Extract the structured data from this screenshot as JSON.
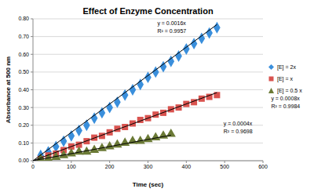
{
  "chart_data": {
    "type": "scatter",
    "title": "Effect of Enzyme Concentration",
    "x_label": "Time (sec)",
    "y_label": "Absorbance at 500 nm",
    "xlim": [
      0,
      600
    ],
    "xticks": [
      0,
      100,
      200,
      300,
      400,
      500,
      600
    ],
    "ylim": [
      0,
      0.8
    ],
    "yticks": [
      {
        "value": 0,
        "label": "0.00"
      },
      {
        "value": 0.1,
        "label": "0.10"
      },
      {
        "value": 0.2,
        "label": "0.20"
      },
      {
        "value": 0.3,
        "label": "0.30"
      },
      {
        "value": 0.4,
        "label": "0.40"
      },
      {
        "value": 0.5,
        "label": "0.50"
      },
      {
        "value": 0.6,
        "label": "0.60"
      },
      {
        "value": 0.7,
        "label": "0.70"
      },
      {
        "value": 0.8,
        "label": "0.80"
      }
    ],
    "grid": true,
    "legend": "right",
    "series": [
      {
        "name": "[E] = 2x",
        "color": "#3a8fdc",
        "marker": "diamond",
        "x": [
          20,
          40,
          60,
          80,
          100,
          120,
          140,
          160,
          180,
          200,
          220,
          240,
          260,
          280,
          300,
          320,
          340,
          360,
          380,
          400,
          420,
          440,
          460,
          480
        ],
        "values": [
          0.03,
          0.05,
          0.08,
          0.11,
          0.14,
          0.17,
          0.2,
          0.24,
          0.27,
          0.3,
          0.33,
          0.37,
          0.4,
          0.43,
          0.47,
          0.5,
          0.53,
          0.56,
          0.59,
          0.63,
          0.66,
          0.69,
          0.72,
          0.75
        ],
        "trend_x": [
          0,
          480
        ],
        "trend_y": [
          0,
          0.768
        ],
        "equation": "y = 0.0016x",
        "r_squared": "R² = 0.9957"
      },
      {
        "name": "[E] = x",
        "color": "#d9534f",
        "marker": "square",
        "x": [
          20,
          40,
          60,
          80,
          100,
          120,
          140,
          160,
          180,
          200,
          220,
          240,
          260,
          280,
          300,
          320,
          340,
          360,
          380,
          400,
          420,
          440,
          460,
          480
        ],
        "values": [
          0.01,
          0.03,
          0.04,
          0.06,
          0.08,
          0.09,
          0.11,
          0.13,
          0.14,
          0.16,
          0.18,
          0.19,
          0.21,
          0.23,
          0.24,
          0.26,
          0.27,
          0.29,
          0.3,
          0.32,
          0.33,
          0.35,
          0.36,
          0.37
        ],
        "trend_x": [
          0,
          480
        ],
        "trend_y": [
          0,
          0.384
        ],
        "equation": "y = 0.0008x",
        "r_squared": "R² = 0.9984"
      },
      {
        "name": "[E] = 0.5 x",
        "color": "#6b7a36",
        "marker": "triangle",
        "x": [
          20,
          40,
          60,
          80,
          100,
          120,
          140,
          160,
          180,
          200,
          220,
          240,
          260,
          280,
          300,
          320,
          340,
          360
        ],
        "values": [
          0.01,
          0.01,
          0.02,
          0.03,
          0.04,
          0.05,
          0.05,
          0.06,
          0.07,
          0.08,
          0.09,
          0.1,
          0.11,
          0.11,
          0.12,
          0.13,
          0.14,
          0.15
        ],
        "trend_x": [
          0,
          360
        ],
        "trend_y": [
          0,
          0.144
        ],
        "equation": "y = 0.0004x",
        "r_squared": "R² = 0.9698"
      }
    ]
  }
}
